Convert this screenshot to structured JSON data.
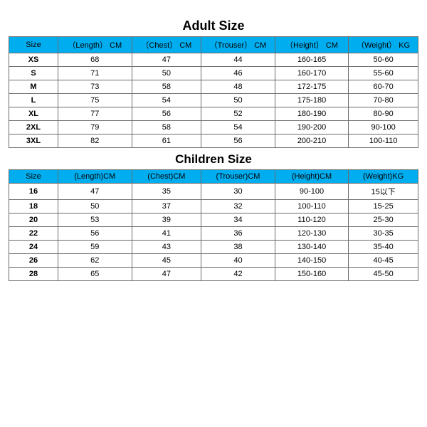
{
  "colors": {
    "header_bg": "#00aef0",
    "border": "#6b6b6b",
    "background": "#ffffff",
    "text": "#000000"
  },
  "title_fontsize_adult": 18,
  "title_fontsize_child": 17,
  "cell_fontsize": 11,
  "adult": {
    "title": "Adult Size",
    "columns": [
      "Size",
      "（Length） CM",
      "（Chest） CM",
      "（Trouser） CM",
      "（Height） CM",
      "（Weight） KG"
    ],
    "rows": [
      [
        "XS",
        "68",
        "47",
        "44",
        "160-165",
        "50-60"
      ],
      [
        "S",
        "71",
        "50",
        "46",
        "160-170",
        "55-60"
      ],
      [
        "M",
        "73",
        "58",
        "48",
        "172-175",
        "60-70"
      ],
      [
        "L",
        "75",
        "54",
        "50",
        "175-180",
        "70-80"
      ],
      [
        "XL",
        "77",
        "56",
        "52",
        "180-190",
        "80-90"
      ],
      [
        "2XL",
        "79",
        "58",
        "54",
        "190-200",
        "90-100"
      ],
      [
        "3XL",
        "82",
        "61",
        "56",
        "200-210",
        "100-110"
      ]
    ],
    "col_widths_pct": [
      12,
      18,
      17,
      18,
      18,
      17
    ]
  },
  "children": {
    "title": "Children Size",
    "columns": [
      "Size",
      "(Length)CM",
      "(Chest)CM",
      "(Trouser)CM",
      "(Height)CM",
      "(Weight)KG"
    ],
    "rows": [
      [
        "16",
        "47",
        "35",
        "30",
        "90-100",
        "15以下"
      ],
      [
        "18",
        "50",
        "37",
        "32",
        "100-110",
        "15-25"
      ],
      [
        "20",
        "53",
        "39",
        "34",
        "110-120",
        "25-30"
      ],
      [
        "22",
        "56",
        "41",
        "36",
        "120-130",
        "30-35"
      ],
      [
        "24",
        "59",
        "43",
        "38",
        "130-140",
        "35-40"
      ],
      [
        "26",
        "62",
        "45",
        "40",
        "140-150",
        "40-45"
      ],
      [
        "28",
        "65",
        "47",
        "42",
        "150-160",
        "45-50"
      ]
    ],
    "col_widths_pct": [
      12,
      18,
      17,
      18,
      18,
      17
    ]
  }
}
